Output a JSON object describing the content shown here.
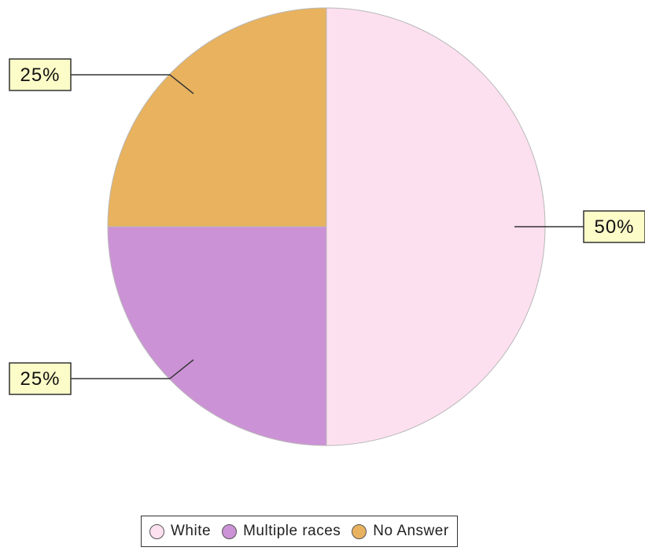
{
  "chart_data": {
    "type": "pie",
    "slices": [
      {
        "label": "White",
        "value": 50,
        "data_label": "50%",
        "color": "#fde0ef"
      },
      {
        "label": "Multiple races",
        "value": 25,
        "data_label": "25%",
        "color": "#cc92d6"
      },
      {
        "label": "No Answer",
        "value": 25,
        "data_label": "25%",
        "color": "#e8b25e"
      }
    ],
    "legend": {
      "position": "bottom",
      "items": [
        "White",
        "Multiple races",
        "No Answer"
      ]
    }
  }
}
